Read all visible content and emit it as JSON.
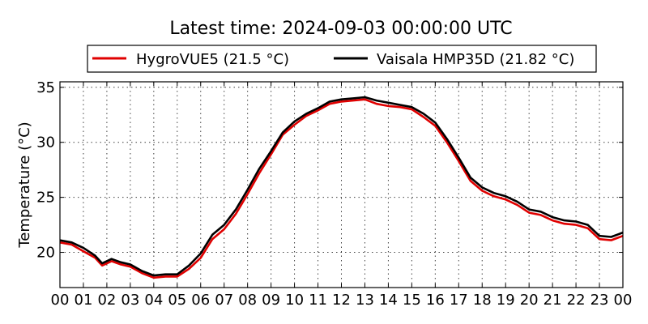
{
  "chart_data": {
    "type": "line",
    "title": "Latest time: 2024-09-03 00:00:00 UTC",
    "xlabel": "",
    "ylabel": "Temperature (°C)",
    "xlim": [
      0,
      24
    ],
    "ylim": [
      16.8,
      35.5
    ],
    "x_tick_labels": [
      "00",
      "01",
      "02",
      "03",
      "04",
      "05",
      "06",
      "07",
      "08",
      "09",
      "10",
      "11",
      "12",
      "13",
      "14",
      "15",
      "16",
      "17",
      "18",
      "19",
      "20",
      "21",
      "22",
      "23",
      "00"
    ],
    "y_ticks": [
      20,
      25,
      30,
      35
    ],
    "grid": true,
    "legend_position": "top-center",
    "series": [
      {
        "name": "HygroVUE5 (21.5 °C)",
        "color": "#e00000",
        "values": [
          [
            0.0,
            20.9
          ],
          [
            0.5,
            20.7
          ],
          [
            1.0,
            20.1
          ],
          [
            1.5,
            19.5
          ],
          [
            1.8,
            18.8
          ],
          [
            2.2,
            19.2
          ],
          [
            2.6,
            18.9
          ],
          [
            3.0,
            18.7
          ],
          [
            3.5,
            18.1
          ],
          [
            4.0,
            17.7
          ],
          [
            4.5,
            17.8
          ],
          [
            5.0,
            17.8
          ],
          [
            5.5,
            18.5
          ],
          [
            6.0,
            19.5
          ],
          [
            6.5,
            21.2
          ],
          [
            7.0,
            22.1
          ],
          [
            7.5,
            23.5
          ],
          [
            8.0,
            25.3
          ],
          [
            8.5,
            27.2
          ],
          [
            9.0,
            28.9
          ],
          [
            9.5,
            30.7
          ],
          [
            10.0,
            31.6
          ],
          [
            10.5,
            32.4
          ],
          [
            11.0,
            32.9
          ],
          [
            11.5,
            33.5
          ],
          [
            12.0,
            33.7
          ],
          [
            12.5,
            33.8
          ],
          [
            13.0,
            33.9
          ],
          [
            13.5,
            33.5
          ],
          [
            14.0,
            33.3
          ],
          [
            14.5,
            33.2
          ],
          [
            15.0,
            33.0
          ],
          [
            15.5,
            32.3
          ],
          [
            16.0,
            31.5
          ],
          [
            16.5,
            30.0
          ],
          [
            17.0,
            28.3
          ],
          [
            17.5,
            26.5
          ],
          [
            18.0,
            25.6
          ],
          [
            18.5,
            25.1
          ],
          [
            19.0,
            24.8
          ],
          [
            19.5,
            24.3
          ],
          [
            20.0,
            23.6
          ],
          [
            20.5,
            23.4
          ],
          [
            21.0,
            22.9
          ],
          [
            21.5,
            22.6
          ],
          [
            22.0,
            22.5
          ],
          [
            22.5,
            22.2
          ],
          [
            23.0,
            21.2
          ],
          [
            23.5,
            21.1
          ],
          [
            24.0,
            21.5
          ]
        ]
      },
      {
        "name": "Vaisala HMP35D (21.82 °C)",
        "color": "#000000",
        "values": [
          [
            0.0,
            21.1
          ],
          [
            0.5,
            20.9
          ],
          [
            1.0,
            20.4
          ],
          [
            1.5,
            19.7
          ],
          [
            1.8,
            19.0
          ],
          [
            2.2,
            19.4
          ],
          [
            2.6,
            19.1
          ],
          [
            3.0,
            18.9
          ],
          [
            3.5,
            18.3
          ],
          [
            4.0,
            17.9
          ],
          [
            4.5,
            18.0
          ],
          [
            5.0,
            18.0
          ],
          [
            5.5,
            18.8
          ],
          [
            6.0,
            19.9
          ],
          [
            6.5,
            21.6
          ],
          [
            7.0,
            22.5
          ],
          [
            7.5,
            23.9
          ],
          [
            8.0,
            25.7
          ],
          [
            8.5,
            27.6
          ],
          [
            9.0,
            29.2
          ],
          [
            9.5,
            30.9
          ],
          [
            10.0,
            31.9
          ],
          [
            10.5,
            32.6
          ],
          [
            11.0,
            33.1
          ],
          [
            11.5,
            33.7
          ],
          [
            12.0,
            33.9
          ],
          [
            12.5,
            34.0
          ],
          [
            13.0,
            34.1
          ],
          [
            13.5,
            33.8
          ],
          [
            14.0,
            33.6
          ],
          [
            14.5,
            33.4
          ],
          [
            15.0,
            33.2
          ],
          [
            15.5,
            32.6
          ],
          [
            16.0,
            31.8
          ],
          [
            16.5,
            30.3
          ],
          [
            17.0,
            28.6
          ],
          [
            17.5,
            26.8
          ],
          [
            18.0,
            25.9
          ],
          [
            18.5,
            25.4
          ],
          [
            19.0,
            25.1
          ],
          [
            19.5,
            24.6
          ],
          [
            20.0,
            23.9
          ],
          [
            20.5,
            23.7
          ],
          [
            21.0,
            23.2
          ],
          [
            21.5,
            22.9
          ],
          [
            22.0,
            22.8
          ],
          [
            22.5,
            22.5
          ],
          [
            23.0,
            21.5
          ],
          [
            23.5,
            21.4
          ],
          [
            24.0,
            21.8
          ]
        ]
      }
    ]
  }
}
